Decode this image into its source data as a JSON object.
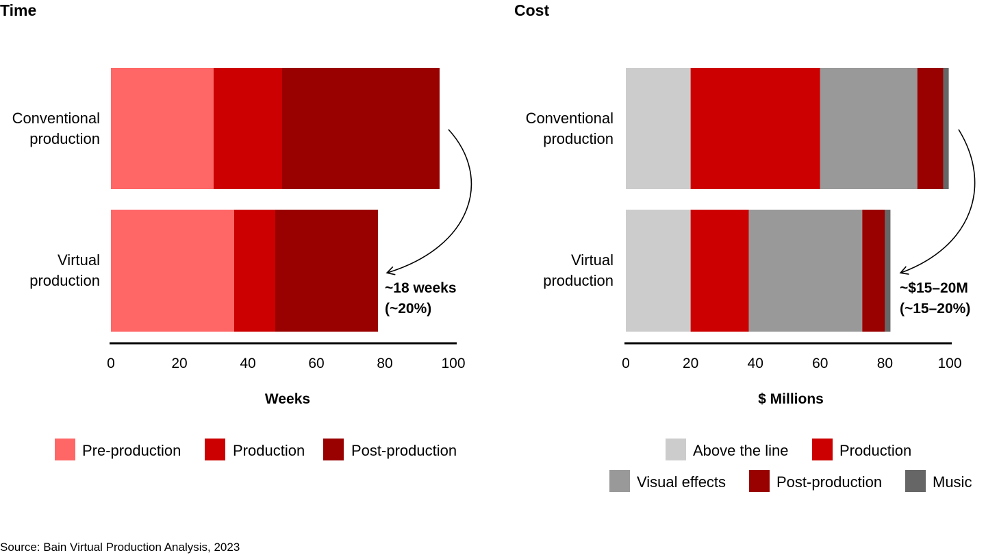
{
  "chart_data": [
    {
      "type": "bar",
      "orientation": "horizontal",
      "stacked": true,
      "title": "Time",
      "xlabel": "Weeks",
      "xlim": [
        0,
        100
      ],
      "xticks": [
        0,
        20,
        40,
        60,
        80,
        100
      ],
      "categories": [
        [
          "Conventional",
          "production"
        ],
        [
          "Virtual",
          "production"
        ]
      ],
      "series": [
        {
          "name": "Pre-production",
          "color": "#ff6666",
          "values": [
            30,
            36
          ]
        },
        {
          "name": "Production",
          "color": "#cc0000",
          "values": [
            20,
            12
          ]
        },
        {
          "name": "Post-production",
          "color": "#990000",
          "values": [
            46,
            30
          ]
        }
      ],
      "annotation": [
        "~18 weeks",
        "(~20%)"
      ],
      "legend_position": "bottom",
      "grid": false
    },
    {
      "type": "bar",
      "orientation": "horizontal",
      "stacked": true,
      "title": "Cost",
      "xlabel": "$ Millions",
      "xlim": [
        0,
        100
      ],
      "xticks": [
        0,
        20,
        40,
        60,
        80,
        100
      ],
      "categories": [
        [
          "Conventional",
          "production"
        ],
        [
          "Virtual",
          "production"
        ]
      ],
      "series": [
        {
          "name": "Above the line",
          "color": "#cccccc",
          "values": [
            20,
            20
          ]
        },
        {
          "name": "Production",
          "color": "#cc0000",
          "values": [
            40,
            18
          ]
        },
        {
          "name": "Visual effects",
          "color": "#999999",
          "values": [
            30,
            35
          ]
        },
        {
          "name": "Post-production",
          "color": "#990000",
          "values": [
            8,
            7
          ]
        },
        {
          "name": "Music",
          "color": "#666666",
          "values": [
            1.7,
            1.7
          ]
        }
      ],
      "annotation": [
        "~$15–20M",
        "(~15–20%)"
      ],
      "legend_position": "bottom",
      "grid": false
    }
  ],
  "source": "Source: Bain Virtual Production Analysis, 2023"
}
